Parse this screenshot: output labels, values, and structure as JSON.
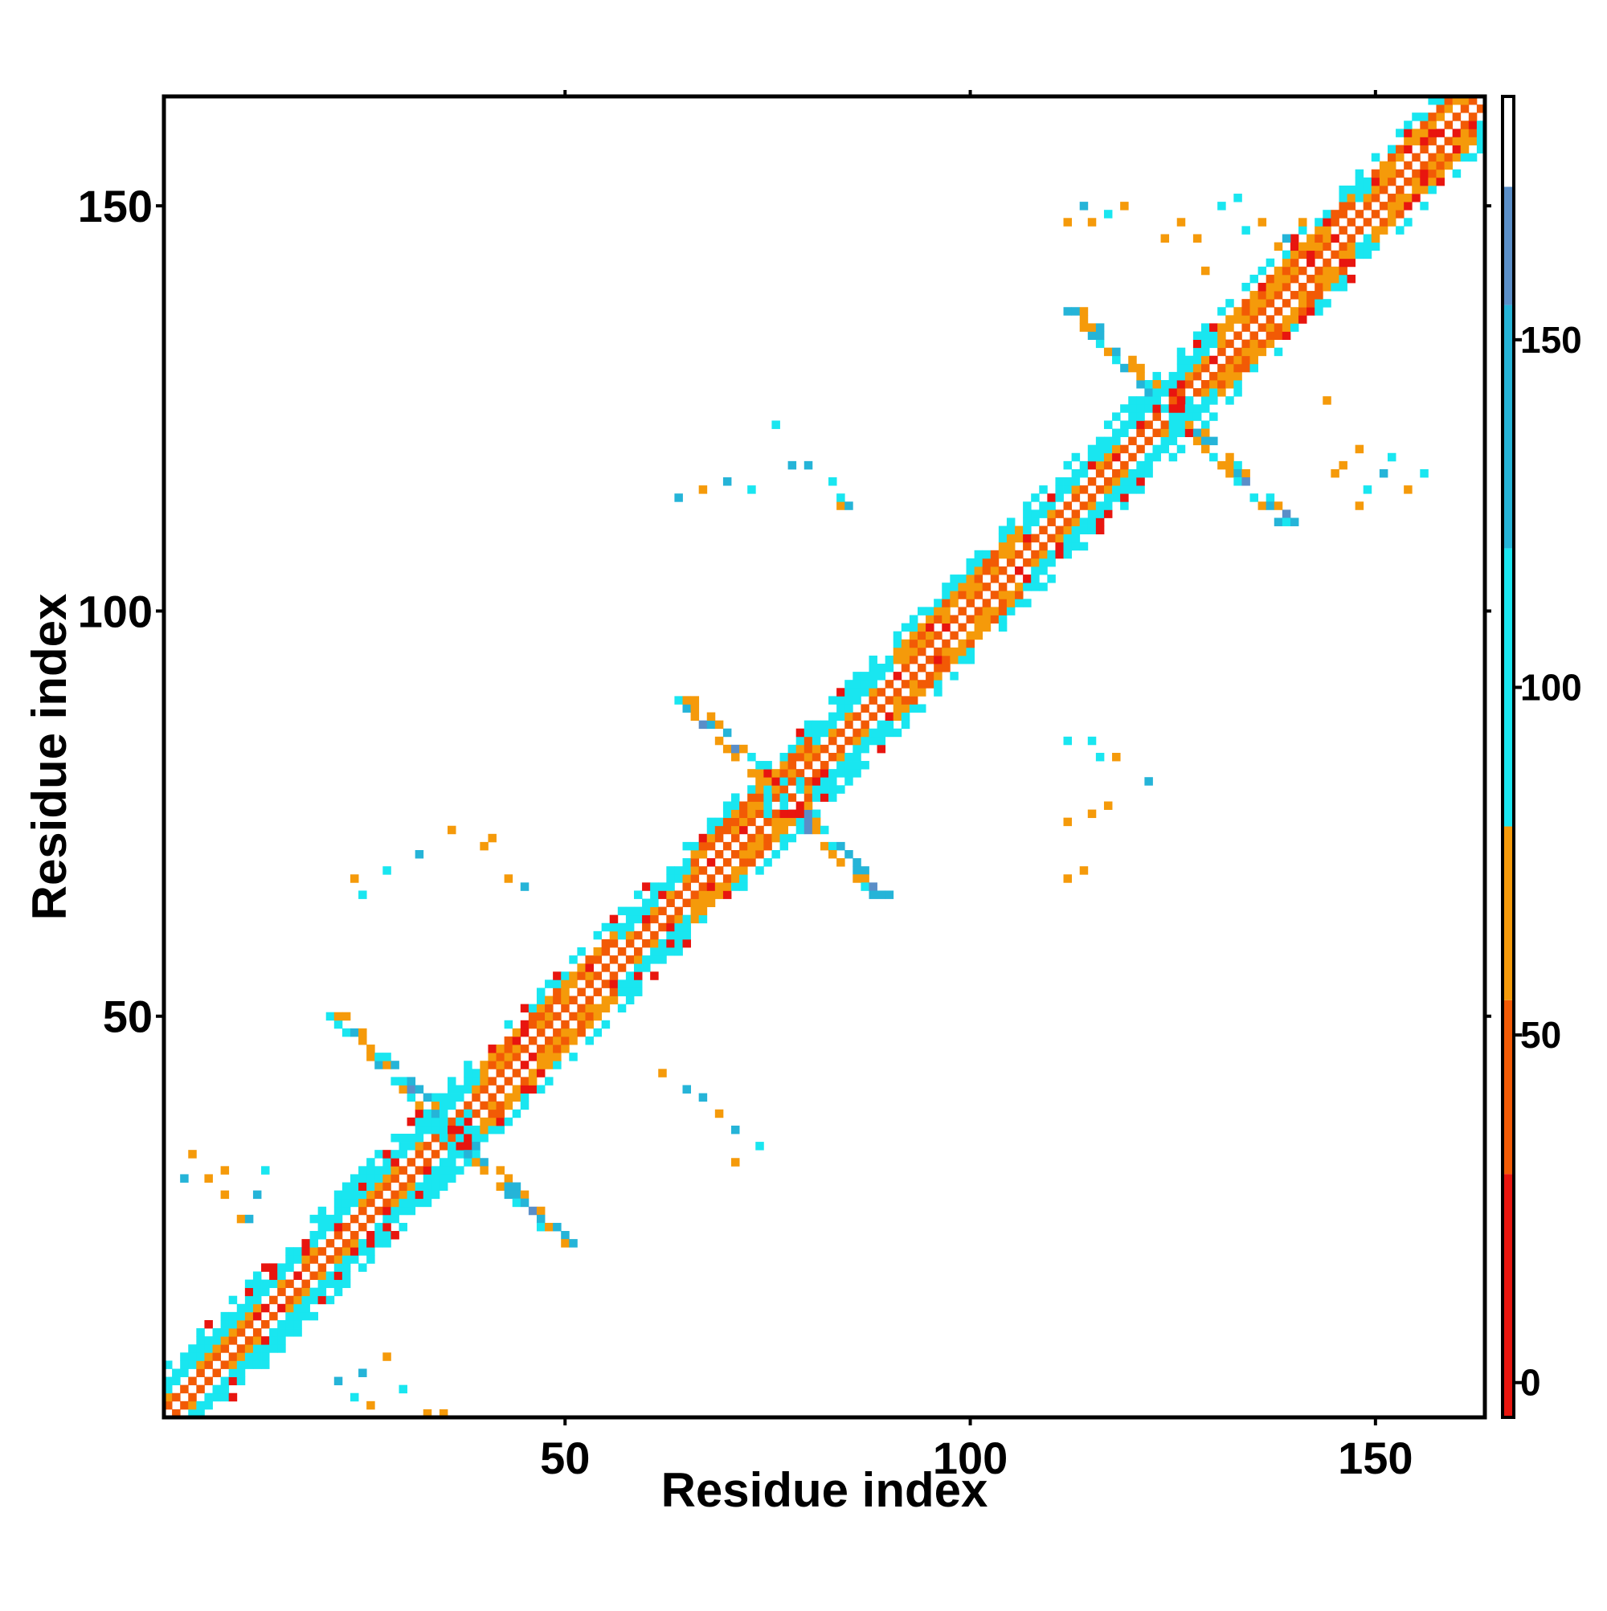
{
  "chart_data": {
    "type": "heatmap",
    "xlabel": "Residue index",
    "ylabel": "Residue index",
    "xlim": [
      1,
      163
    ],
    "ylim": [
      1,
      163
    ],
    "x_ticks": [
      50,
      100,
      150
    ],
    "y_ticks": [
      50,
      100,
      150
    ],
    "colorbar": {
      "range": [
        -5,
        185
      ],
      "ticks": [
        0,
        50,
        100,
        150
      ],
      "bands": [
        {
          "from": -5,
          "to": 30,
          "color": "#e8150f"
        },
        {
          "from": 30,
          "to": 55,
          "color": "#f25a05"
        },
        {
          "from": 55,
          "to": 80,
          "color": "#f59a0a"
        },
        {
          "from": 80,
          "to": 120,
          "color": "#19e6f0"
        },
        {
          "from": 120,
          "to": 155,
          "color": "#25b4d8"
        },
        {
          "from": 155,
          "to": 172,
          "color": "#5a8ec8"
        },
        {
          "from": 172,
          "to": 185,
          "color": "#ffffff"
        }
      ]
    },
    "diagonal_band": {
      "offsets_min": -6,
      "offsets_max": 6,
      "range": [
        1,
        163
      ]
    },
    "helix_segments": [
      [
        40,
        56
      ],
      [
        66,
        80
      ],
      [
        91,
        106
      ],
      [
        131,
        147
      ],
      [
        150,
        162
      ]
    ],
    "crossings": [
      {
        "center": [
          36,
          36
        ],
        "arm": 14
      },
      {
        "center": [
          77,
          77
        ],
        "arm": 12
      },
      {
        "center": [
          125,
          125
        ],
        "arm": 14
      }
    ],
    "contacts": [
      [
        22,
        5
      ],
      [
        24,
        3
      ],
      [
        26,
        2
      ],
      [
        25,
        6
      ],
      [
        28,
        8
      ],
      [
        30,
        4
      ],
      [
        33,
        1
      ],
      [
        35,
        1
      ],
      [
        3,
        30
      ],
      [
        4,
        33
      ],
      [
        6,
        30
      ],
      [
        8,
        31
      ],
      [
        8,
        28
      ],
      [
        10,
        25
      ],
      [
        11,
        25
      ],
      [
        12,
        28
      ],
      [
        13,
        31
      ],
      [
        24,
        67
      ],
      [
        28,
        68
      ],
      [
        32,
        70
      ],
      [
        36,
        73
      ],
      [
        40,
        71
      ],
      [
        41,
        72
      ],
      [
        43,
        67
      ],
      [
        45,
        66
      ],
      [
        25,
        65
      ],
      [
        62,
        43
      ],
      [
        65,
        41
      ],
      [
        67,
        40
      ],
      [
        69,
        38
      ],
      [
        71,
        36
      ],
      [
        74,
        34
      ],
      [
        71,
        32
      ],
      [
        64,
        114
      ],
      [
        67,
        115
      ],
      [
        70,
        116
      ],
      [
        73,
        115
      ],
      [
        76,
        123
      ],
      [
        78,
        118
      ],
      [
        80,
        118
      ],
      [
        83,
        116
      ],
      [
        84,
        113
      ],
      [
        85,
        113
      ],
      [
        84,
        114
      ],
      [
        112,
        84
      ],
      [
        115,
        84
      ],
      [
        116,
        82
      ],
      [
        118,
        82
      ],
      [
        122,
        79
      ],
      [
        117,
        76
      ],
      [
        115,
        75
      ],
      [
        112,
        74
      ],
      [
        114,
        68
      ],
      [
        112,
        67
      ],
      [
        112,
        148
      ],
      [
        114,
        150
      ],
      [
        115,
        148
      ],
      [
        117,
        149
      ],
      [
        119,
        150
      ],
      [
        124,
        146
      ],
      [
        126,
        148
      ],
      [
        128,
        146
      ],
      [
        129,
        142
      ],
      [
        131,
        150
      ],
      [
        133,
        151
      ],
      [
        134,
        147
      ],
      [
        136,
        148
      ],
      [
        138,
        145
      ],
      [
        139,
        146
      ],
      [
        140,
        144
      ],
      [
        141,
        148
      ],
      [
        144,
        126
      ],
      [
        145,
        117
      ],
      [
        146,
        118
      ],
      [
        148,
        120
      ],
      [
        148,
        113
      ],
      [
        149,
        115
      ],
      [
        151,
        117
      ],
      [
        152,
        119
      ],
      [
        154,
        115
      ],
      [
        156,
        117
      ]
    ]
  }
}
